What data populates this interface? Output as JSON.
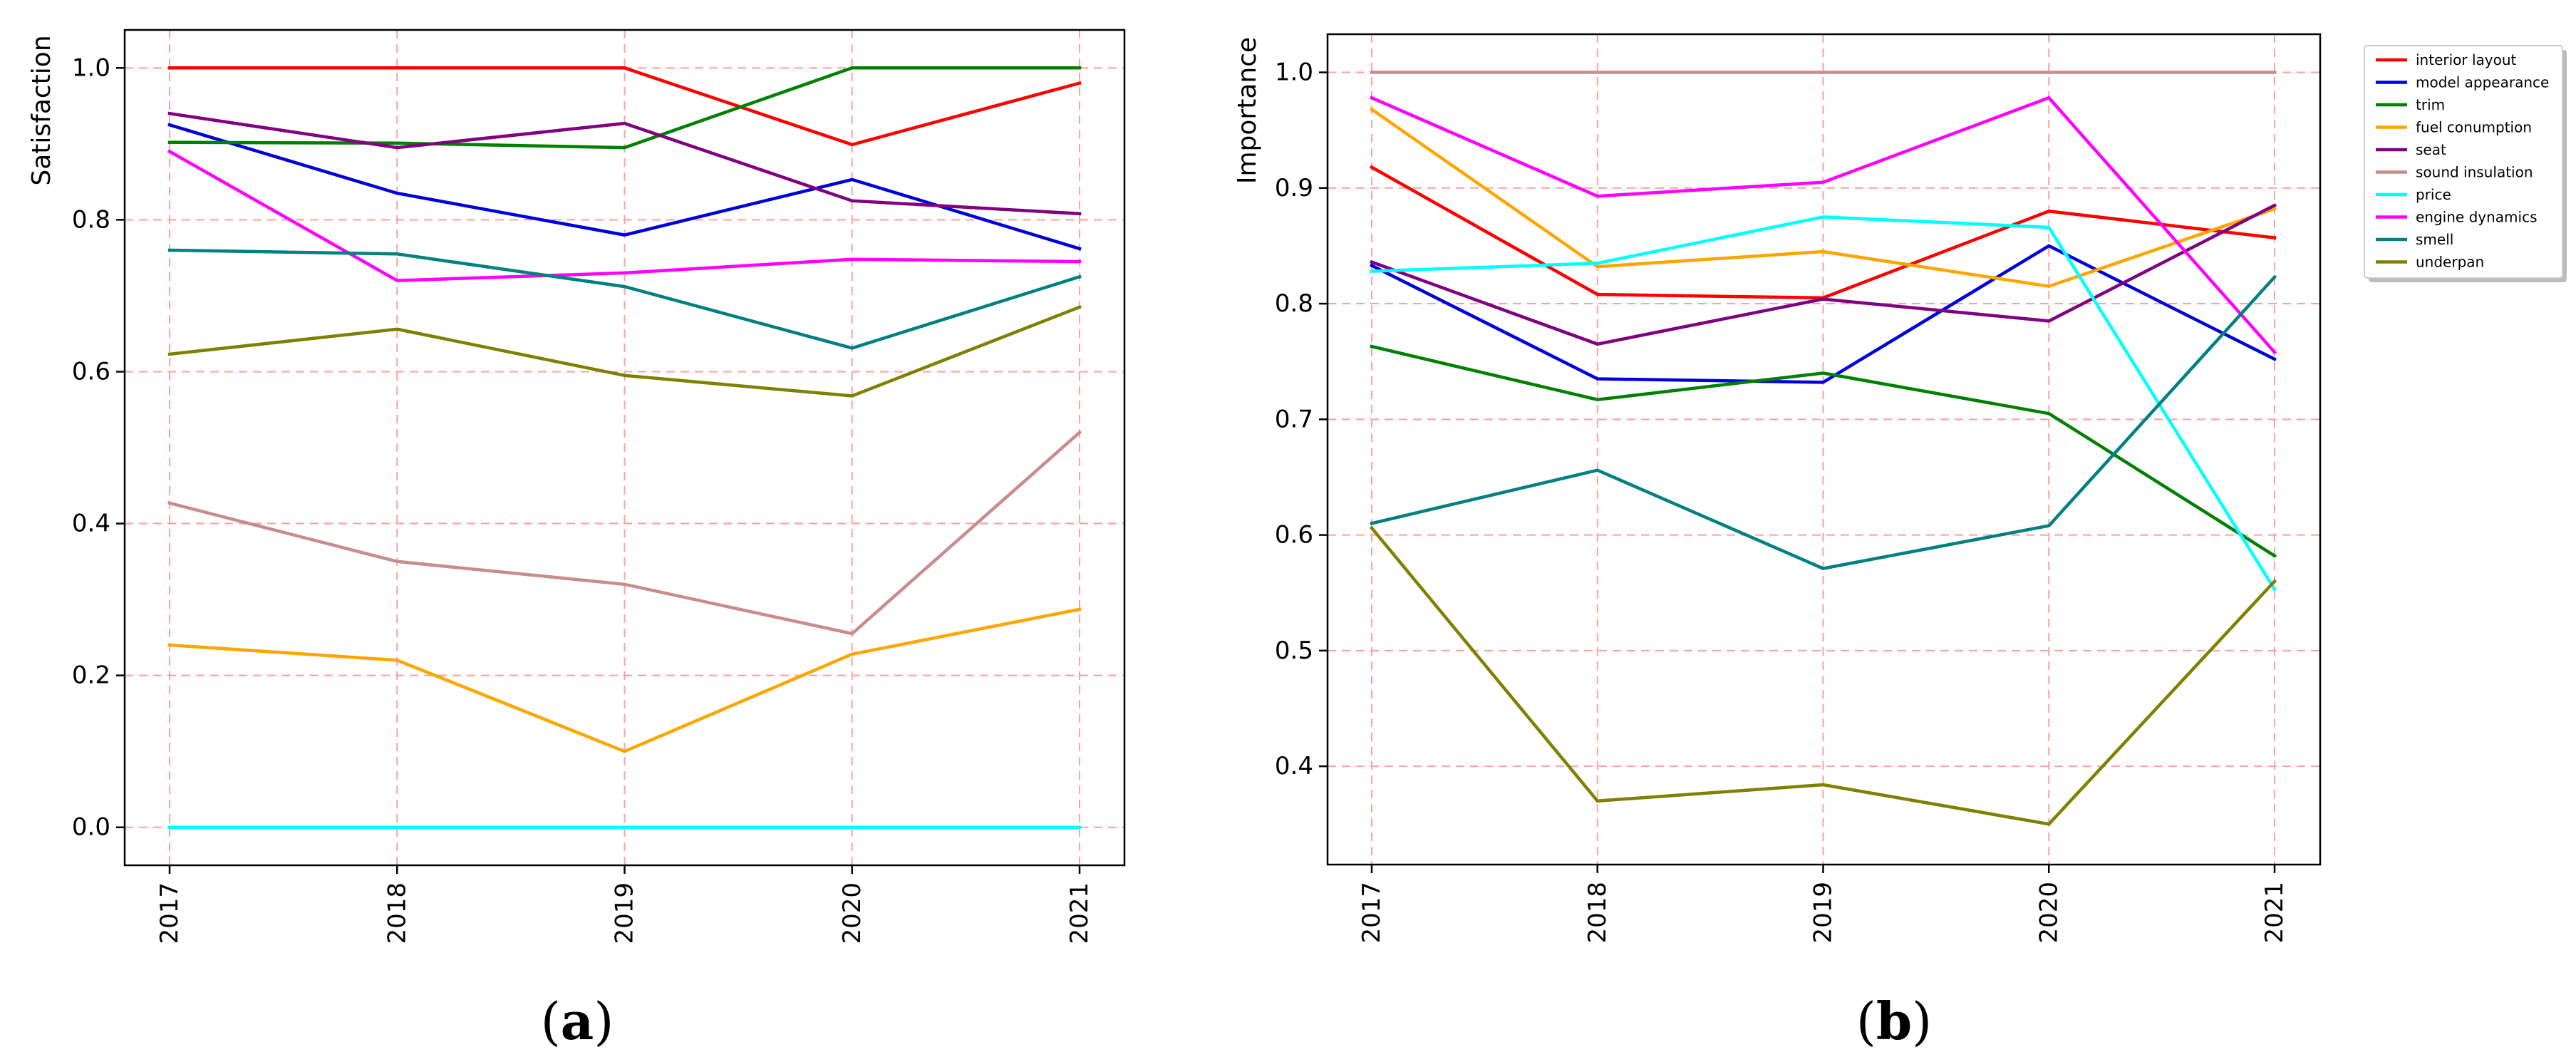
{
  "chart_data": [
    {
      "type": "line",
      "panel_label": "(a)",
      "panel_label_bold": "a",
      "ylabel": "Satisfaction",
      "xlabel": "",
      "categories": [
        "2017",
        "2018",
        "2019",
        "2020",
        "2021"
      ],
      "ylim": [
        -0.05,
        1.05
      ],
      "yticks": [
        0.0,
        0.2,
        0.4,
        0.6,
        0.8,
        1.0
      ],
      "ytick_labels": [
        "0.0",
        "0.2",
        "0.4",
        "0.6",
        "0.8",
        "1.0"
      ],
      "grid": true,
      "grid_color": "#ff9f9f",
      "series": [
        {
          "name": "interior layout",
          "color": "#ff0000",
          "values": [
            1.0,
            1.0,
            1.0,
            0.899,
            0.98
          ]
        },
        {
          "name": "model appearance",
          "color": "#0000dd",
          "values": [
            0.925,
            0.835,
            0.78,
            0.853,
            0.762
          ]
        },
        {
          "name": "trim",
          "color": "#008000",
          "values": [
            0.902,
            0.901,
            0.895,
            1.0,
            1.0
          ]
        },
        {
          "name": "fuel conumption",
          "color": "#ffa500",
          "values": [
            0.24,
            0.22,
            0.1,
            0.228,
            0.287
          ]
        },
        {
          "name": "seat",
          "color": "#800080",
          "values": [
            0.94,
            0.895,
            0.927,
            0.825,
            0.808
          ]
        },
        {
          "name": "sound insulation",
          "color": "#c88c8c",
          "values": [
            0.427,
            0.35,
            0.32,
            0.255,
            0.52
          ]
        },
        {
          "name": "price",
          "color": "#00ffff",
          "values": [
            0.0,
            0.0,
            0.0,
            0.0,
            0.0
          ]
        },
        {
          "name": "engine dynamics",
          "color": "#ff00ff",
          "values": [
            0.89,
            0.72,
            0.73,
            0.748,
            0.745
          ]
        },
        {
          "name": "smell",
          "color": "#008080",
          "values": [
            0.76,
            0.755,
            0.712,
            0.631,
            0.725
          ]
        },
        {
          "name": "underpan",
          "color": "#808000",
          "values": [
            0.623,
            0.656,
            0.595,
            0.568,
            0.685
          ]
        }
      ]
    },
    {
      "type": "line",
      "panel_label": "(b)",
      "panel_label_bold": "b",
      "ylabel": "Importance",
      "xlabel": "",
      "categories": [
        "2017",
        "2018",
        "2019",
        "2020",
        "2021"
      ],
      "ylim": [
        0.315,
        1.033
      ],
      "yticks": [
        0.4,
        0.5,
        0.6,
        0.7,
        0.8,
        0.9,
        1.0
      ],
      "ytick_labels": [
        "0.4",
        "0.5",
        "0.6",
        "0.7",
        "0.8",
        "0.9",
        "1.0"
      ],
      "grid": true,
      "grid_color": "#ff9f9f",
      "legend_position": "outside-top-right",
      "series": [
        {
          "name": "interior layout",
          "color": "#ff0000",
          "values": [
            0.918,
            0.808,
            0.805,
            0.88,
            0.857
          ]
        },
        {
          "name": "model appearance",
          "color": "#0000dd",
          "values": [
            0.833,
            0.735,
            0.732,
            0.85,
            0.752
          ]
        },
        {
          "name": "trim",
          "color": "#008000",
          "values": [
            0.763,
            0.717,
            0.74,
            0.705,
            0.582
          ]
        },
        {
          "name": "fuel conumption",
          "color": "#ffa500",
          "values": [
            0.968,
            0.832,
            0.845,
            0.815,
            0.882
          ]
        },
        {
          "name": "seat",
          "color": "#800080",
          "values": [
            0.836,
            0.765,
            0.804,
            0.785,
            0.885
          ]
        },
        {
          "name": "sound insulation",
          "color": "#c88c8c",
          "values": [
            1.0,
            1.0,
            1.0,
            1.0,
            1.0
          ]
        },
        {
          "name": "price",
          "color": "#00ffff",
          "values": [
            0.828,
            0.835,
            0.875,
            0.866,
            0.553
          ]
        },
        {
          "name": "engine dynamics",
          "color": "#ff00ff",
          "values": [
            0.978,
            0.893,
            0.905,
            0.978,
            0.758
          ]
        },
        {
          "name": "smell",
          "color": "#008080",
          "values": [
            0.61,
            0.656,
            0.571,
            0.608,
            0.823
          ]
        },
        {
          "name": "underpan",
          "color": "#808000",
          "values": [
            0.606,
            0.37,
            0.384,
            0.35,
            0.56
          ]
        }
      ]
    }
  ]
}
